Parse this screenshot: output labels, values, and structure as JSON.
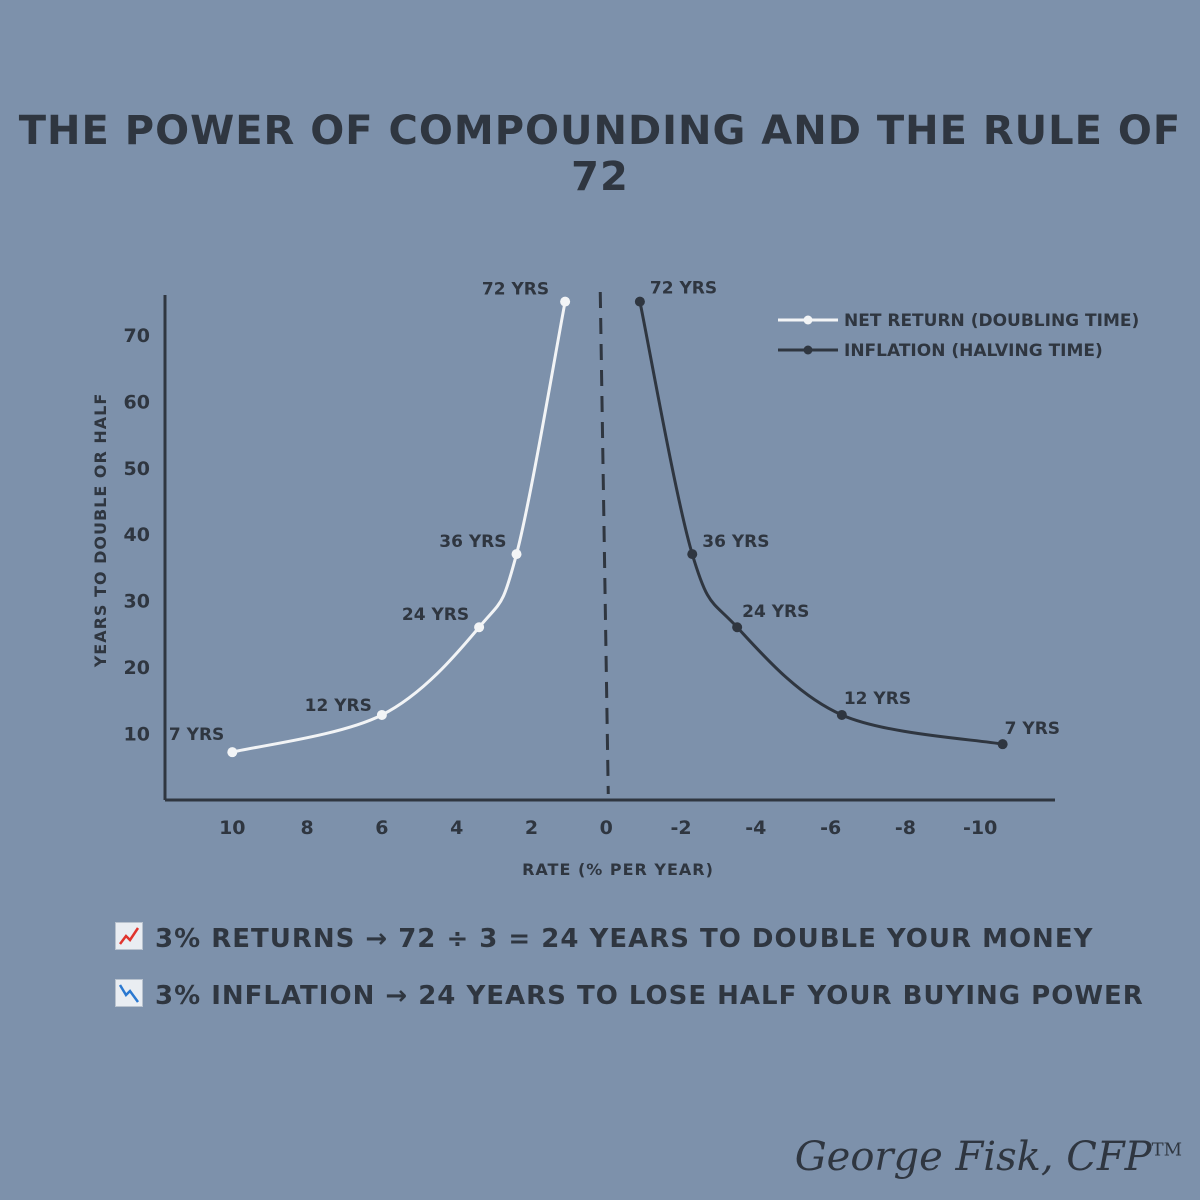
{
  "chart_data": {
    "type": "line",
    "title": "THE POWER OF COMPOUNDING AND THE RULE OF 72",
    "xlabel": "RATE (% PER YEAR)",
    "ylabel": "YEARS TO DOUBLE OR HALF",
    "xlim": [
      11.8,
      -12
    ],
    "ylim": [
      0,
      76
    ],
    "x_ticks": [
      10,
      8,
      6,
      4,
      2,
      0,
      -2,
      -4,
      -6,
      -8,
      -10
    ],
    "y_ticks": [
      10,
      20,
      30,
      40,
      50,
      60,
      70
    ],
    "legend_position": "top-right",
    "grid": false,
    "series": [
      {
        "name": "NET RETURN (DOUBLING TIME)",
        "color": "#f2f4f6",
        "points": [
          {
            "x": 10,
            "y": 7.2,
            "label": "7 YRS"
          },
          {
            "x": 6,
            "y": 12.8,
            "label": "12 YRS"
          },
          {
            "x": 3.4,
            "y": 26,
            "label": "24 YRS"
          },
          {
            "x": 2.4,
            "y": 37,
            "label": "36 YRS"
          },
          {
            "x": 1.1,
            "y": 75,
            "label": "72 YRS"
          }
        ]
      },
      {
        "name": "INFLATION (HALVING TIME)",
        "color": "#2f3640",
        "points": [
          {
            "x": -0.9,
            "y": 75,
            "label": "72 YRS"
          },
          {
            "x": -2.3,
            "y": 37,
            "label": "36 YRS"
          },
          {
            "x": -3.5,
            "y": 26,
            "label": "24 YRS"
          },
          {
            "x": -6.3,
            "y": 12.8,
            "label": "12 YRS"
          },
          {
            "x": -10.6,
            "y": 8.4,
            "label": "7 YRS"
          }
        ]
      }
    ],
    "reference_line": {
      "x": 0,
      "style": "dashed"
    }
  },
  "notes": [
    {
      "icon": "chart-increasing-icon",
      "text": "3% RETURNS → 72 ÷ 3 = 24 YEARS TO DOUBLE YOUR MONEY"
    },
    {
      "icon": "chart-decreasing-icon",
      "text": "3% INFLATION → 24 YEARS TO LOSE HALF YOUR BUYING POWER"
    }
  ],
  "signature": {
    "name": "George Fisk, CFP",
    "mark": "TM"
  }
}
